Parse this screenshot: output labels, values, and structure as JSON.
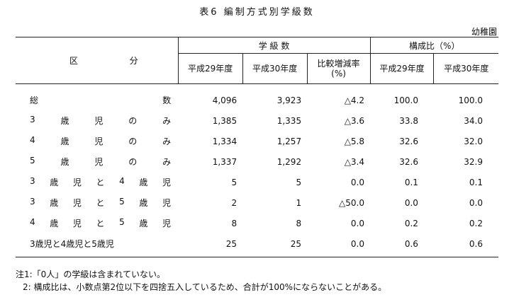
{
  "title": "表6 編制方式別学級数",
  "unit": "幼稚園",
  "header": {
    "category": [
      "区",
      "分"
    ],
    "class_count_group": "学 級 数",
    "ratio_group": "構成比（%）",
    "col_2017": "平成29年度",
    "col_2018": "平成30年度",
    "col_change_line1": "比較増減率",
    "col_change_line2": "(%)",
    "col_ratio_2017": "平成29年度",
    "col_ratio_2018": "平成30年度"
  },
  "rows": [
    {
      "label": [
        "総",
        "数"
      ],
      "y2017": "4,096",
      "y2018": "3,923",
      "change": "△4.2",
      "r2017": "100.0",
      "r2018": "100.0"
    },
    {
      "label": [
        "3",
        "歳",
        "児",
        "の",
        "み"
      ],
      "y2017": "1,385",
      "y2018": "1,335",
      "change": "△3.6",
      "r2017": "33.8",
      "r2018": "34.0"
    },
    {
      "label": [
        "4",
        "歳",
        "児",
        "の",
        "み"
      ],
      "y2017": "1,334",
      "y2018": "1,257",
      "change": "△5.8",
      "r2017": "32.6",
      "r2018": "32.0"
    },
    {
      "label": [
        "5",
        "歳",
        "児",
        "の",
        "み"
      ],
      "y2017": "1,337",
      "y2018": "1,292",
      "change": "△3.4",
      "r2017": "32.6",
      "r2018": "32.9"
    },
    {
      "label": [
        "3",
        "歳",
        "児",
        "と",
        "4",
        "歳",
        "児"
      ],
      "y2017": "5",
      "y2018": "5",
      "change": "0.0",
      "r2017": "0.1",
      "r2018": "0.1"
    },
    {
      "label": [
        "3",
        "歳",
        "児",
        "と",
        "5",
        "歳",
        "児"
      ],
      "y2017": "2",
      "y2018": "1",
      "change": "△50.0",
      "r2017": "0.0",
      "r2018": "0.0"
    },
    {
      "label": [
        "4",
        "歳",
        "児",
        "と",
        "5",
        "歳",
        "児"
      ],
      "y2017": "8",
      "y2018": "8",
      "change": "0.0",
      "r2017": "0.2",
      "r2018": "0.2"
    },
    {
      "label": [
        "3歳児と4歳児と5歳児"
      ],
      "y2017": "25",
      "y2018": "25",
      "change": "0.0",
      "r2017": "0.6",
      "r2018": "0.6"
    }
  ],
  "notes": [
    "注1:「0人」の学級は含まれていない。",
    "2: 構成比は、小数点第2位以下を四捨五入しているため、合計が100%にならないことがある。"
  ]
}
